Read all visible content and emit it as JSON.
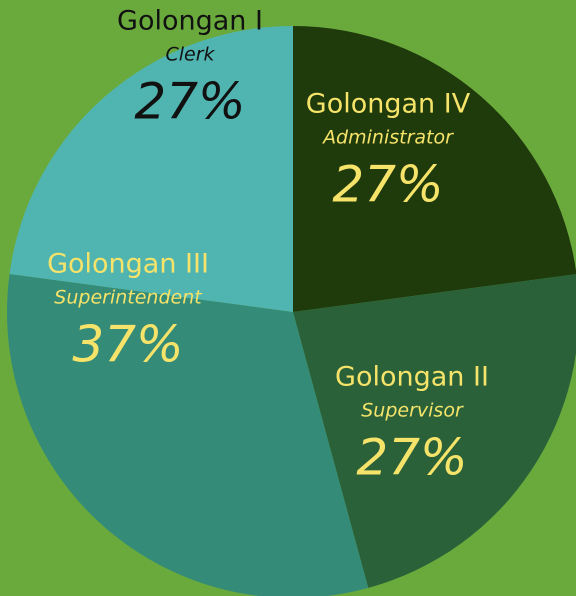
{
  "chart_data": {
    "type": "pie",
    "categories": [
      "Golongan IV",
      "Golongan II",
      "Golongan III",
      "Golongan I"
    ],
    "subtitles": [
      "Administrator",
      "Supervisor",
      "Superintendent",
      "Clerk"
    ],
    "values": [
      27,
      27,
      37,
      27
    ],
    "value_labels": [
      "27%",
      "27%",
      "37%",
      "27%"
    ],
    "colors": [
      "#1f3a0b",
      "#2a6139",
      "#348b78",
      "#50b5b1"
    ],
    "label_colors": [
      "#f5e36a",
      "#f5e36a",
      "#f5e36a",
      "#111111"
    ]
  }
}
